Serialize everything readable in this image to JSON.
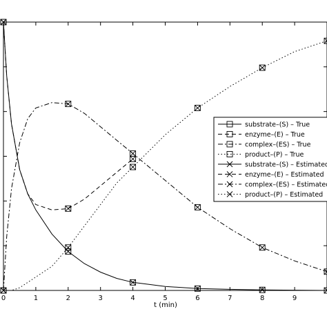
{
  "chart_data": {
    "type": "line",
    "title": "",
    "xlabel": "t (min)",
    "ylabel": "",
    "xlim": [
      0,
      10
    ],
    "ylim": [
      0,
      1
    ],
    "grid": false,
    "legend_placement": "right",
    "x_ticks": [
      "0",
      "1",
      "2",
      "3",
      "4",
      "5",
      "6",
      "7",
      "8",
      "9"
    ],
    "series": [
      {
        "name": "substrate–(S) – True",
        "style": "solid",
        "marker": "square",
        "x": [
          0,
          0.1,
          0.25,
          0.5,
          0.75,
          1,
          1.5,
          2,
          2.5,
          3,
          3.5,
          4,
          5,
          6,
          7,
          8,
          9,
          10
        ],
        "y": [
          1,
          0.8,
          0.62,
          0.45,
          0.36,
          0.3,
          0.21,
          0.145,
          0.1,
          0.068,
          0.045,
          0.03,
          0.015,
          0.007,
          0.004,
          0.002,
          0.001,
          0
        ],
        "marker_x": [
          0,
          2,
          4,
          6,
          8,
          10
        ],
        "marker_y": [
          1,
          0.145,
          0.03,
          0.007,
          0.002,
          0
        ]
      },
      {
        "name": "enzyme–(E) – True",
        "style": "dashed",
        "marker": "square",
        "x": [
          0,
          0.1,
          0.25,
          0.5,
          0.75,
          1,
          1.5,
          2,
          2.5,
          3,
          3.5,
          4
        ],
        "y": [
          1,
          0.8,
          0.62,
          0.45,
          0.36,
          0.32,
          0.3,
          0.305,
          0.34,
          0.39,
          0.44,
          0.49
        ],
        "marker_x": [
          0,
          2,
          4
        ],
        "marker_y": [
          1,
          0.305,
          0.49
        ]
      },
      {
        "name": "complex–(ES) – True",
        "style": "dashdot",
        "marker": "square",
        "x": [
          0,
          0.1,
          0.25,
          0.5,
          0.75,
          1,
          1.5,
          2,
          2.5,
          3,
          3.5,
          4,
          5,
          6,
          7,
          8,
          9,
          10
        ],
        "y": [
          0,
          0.2,
          0.38,
          0.55,
          0.64,
          0.68,
          0.7,
          0.695,
          0.66,
          0.61,
          0.56,
          0.51,
          0.41,
          0.31,
          0.23,
          0.16,
          0.11,
          0.07
        ],
        "marker_x": [
          0,
          2,
          4,
          6,
          8,
          10
        ],
        "marker_y": [
          0,
          0.695,
          0.51,
          0.31,
          0.16,
          0.07
        ]
      },
      {
        "name": "product–(P) – True",
        "style": "dotted",
        "marker": "square",
        "x": [
          0,
          0.25,
          0.5,
          0.75,
          1,
          1.5,
          2,
          2.5,
          3,
          3.5,
          4,
          5,
          6,
          7,
          8,
          9,
          10
        ],
        "y": [
          0,
          0.0,
          0.01,
          0.03,
          0.05,
          0.09,
          0.16,
          0.24,
          0.32,
          0.4,
          0.46,
          0.58,
          0.68,
          0.76,
          0.83,
          0.89,
          0.93
        ],
        "marker_x": [
          0,
          2,
          4,
          6,
          8,
          10
        ],
        "marker_y": [
          0,
          0.16,
          0.46,
          0.68,
          0.83,
          0.93
        ]
      },
      {
        "name": "substrate–(S) – Estimated",
        "style": "solid",
        "marker": "x",
        "marker_x": [
          0,
          2,
          4,
          6,
          8,
          10
        ],
        "marker_y": [
          1,
          0.145,
          0.03,
          0.007,
          0.002,
          0
        ]
      },
      {
        "name": "enzyme–(E) – Estimated",
        "style": "dashed",
        "marker": "x",
        "marker_x": [
          0,
          2,
          4
        ],
        "marker_y": [
          1,
          0.305,
          0.49
        ]
      },
      {
        "name": "complex–(ES) – Estimated",
        "style": "dashdot",
        "marker": "x",
        "marker_x": [
          0,
          2,
          4,
          6,
          8,
          10
        ],
        "marker_y": [
          0,
          0.695,
          0.51,
          0.31,
          0.16,
          0.07
        ]
      },
      {
        "name": "product–(P) – Estimated",
        "style": "dotted",
        "marker": "x",
        "marker_x": [
          0,
          2,
          4,
          6,
          8,
          10
        ],
        "marker_y": [
          0,
          0.16,
          0.46,
          0.68,
          0.83,
          0.93
        ]
      }
    ],
    "colors": {
      "line": "#000000",
      "background": "#ffffff"
    }
  }
}
